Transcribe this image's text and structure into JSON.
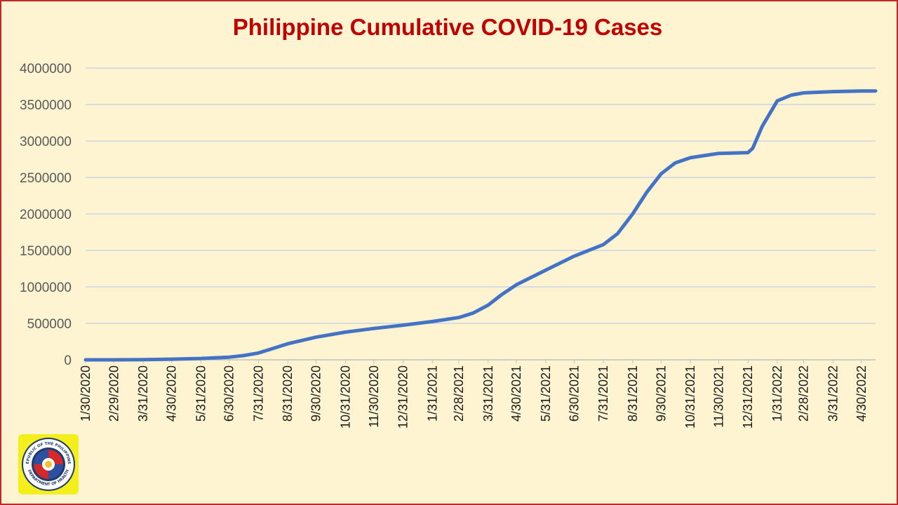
{
  "chart_data": {
    "type": "line",
    "title": "Philippine Cumulative COVID-19 Cases",
    "xlabel": "",
    "ylabel": "",
    "ylim": [
      0,
      4000000
    ],
    "yticks": [
      0,
      500000,
      1000000,
      1500000,
      2000000,
      2500000,
      3000000,
      3500000,
      4000000
    ],
    "ytick_labels": [
      "0",
      "500000",
      "1000000",
      "1500000",
      "2000000",
      "2500000",
      "3000000",
      "3500000",
      "4000000"
    ],
    "x_range": [
      "1/30/2020",
      "5/15/2022"
    ],
    "xtick_labels": [
      "1/30/2020",
      "2/29/2020",
      "3/31/2020",
      "4/30/2020",
      "5/31/2020",
      "6/30/2020",
      "7/31/2020",
      "8/31/2020",
      "9/30/2020",
      "10/31/2020",
      "11/30/2020",
      "12/31/2020",
      "1/31/2021",
      "2/28/2021",
      "3/31/2021",
      "4/30/2021",
      "5/31/2021",
      "6/30/2021",
      "7/31/2021",
      "8/31/2021",
      "9/30/2021",
      "10/31/2021",
      "11/30/2021",
      "12/31/2021",
      "1/31/2022",
      "2/28/2022",
      "3/31/2022",
      "4/30/2022"
    ],
    "grid": true,
    "legend": "none",
    "line_color": "#4472c4",
    "series": [
      {
        "x": [
          "1/30/2020",
          "2/29/2020",
          "3/31/2020",
          "4/30/2020",
          "5/31/2020",
          "6/30/2020",
          "7/15/2020",
          "7/31/2020",
          "8/31/2020",
          "9/30/2020",
          "10/31/2020",
          "11/30/2020",
          "12/31/2020",
          "1/31/2021",
          "2/28/2021",
          "3/15/2021",
          "3/31/2021",
          "4/15/2021",
          "4/30/2021",
          "5/31/2021",
          "6/30/2021",
          "7/31/2021",
          "8/15/2021",
          "8/31/2021",
          "9/15/2021",
          "9/30/2021",
          "10/15/2021",
          "10/31/2021",
          "11/30/2021",
          "12/31/2021",
          "1/5/2022",
          "1/15/2022",
          "1/31/2022",
          "2/15/2022",
          "2/28/2022",
          "3/31/2022",
          "4/30/2022",
          "5/15/2022"
        ],
        "values": [
          0,
          3,
          2100,
          8500,
          18000,
          37000,
          58000,
          93000,
          220000,
          311000,
          380000,
          430000,
          475000,
          525000,
          580000,
          640000,
          750000,
          900000,
          1030000,
          1230000,
          1420000,
          1580000,
          1730000,
          2000000,
          2300000,
          2550000,
          2700000,
          2770000,
          2830000,
          2840000,
          2900000,
          3200000,
          3550000,
          3630000,
          3660000,
          3677000,
          3685000,
          3686000
        ]
      }
    ]
  },
  "logo": {
    "ring_text_top": "REPUBLIC OF THE PHILIPPINES",
    "ring_text_bottom": "DEPARTMENT OF HEALTH"
  }
}
